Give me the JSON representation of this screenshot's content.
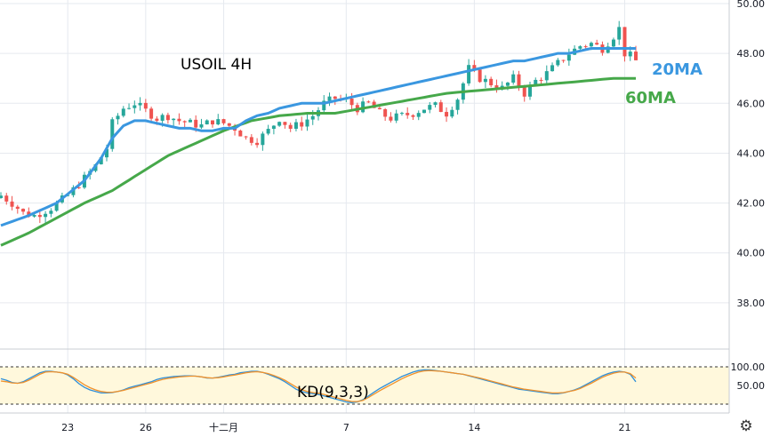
{
  "chart_data": [
    {
      "type": "candlestick",
      "symbol_label": "USOIL 4H",
      "ylim": [
        36.5,
        50.0
      ],
      "y_ticks": [
        "38.00",
        "40.00",
        "42.00",
        "44.00",
        "46.00",
        "48.00",
        "50.00"
      ],
      "x_ticks": [
        "23",
        "26",
        "十二月",
        "7",
        "14",
        "21"
      ],
      "bars_count": 115,
      "close_points": [
        [
          0,
          42.3
        ],
        [
          2,
          42.0
        ],
        [
          4,
          41.6
        ],
        [
          6,
          41.5
        ],
        [
          9,
          41.8
        ],
        [
          12,
          42.3
        ],
        [
          15,
          43.0
        ],
        [
          17,
          43.5
        ],
        [
          19,
          44.2
        ],
        [
          20,
          45.2
        ],
        [
          22,
          45.8
        ],
        [
          24,
          46.0
        ],
        [
          26,
          45.7
        ],
        [
          28,
          45.4
        ],
        [
          30,
          45.5
        ],
        [
          32,
          45.3
        ],
        [
          34,
          45.2
        ],
        [
          36,
          45.1
        ],
        [
          38,
          45.3
        ],
        [
          40,
          45.2
        ],
        [
          42,
          45.0
        ],
        [
          44,
          44.6
        ],
        [
          46,
          44.5
        ],
        [
          48,
          44.9
        ],
        [
          50,
          45.4
        ],
        [
          52,
          45.0
        ],
        [
          54,
          45.2
        ],
        [
          56,
          45.5
        ],
        [
          58,
          46.0
        ],
        [
          60,
          46.2
        ],
        [
          62,
          46.1
        ],
        [
          64,
          45.8
        ],
        [
          66,
          46.0
        ],
        [
          68,
          45.6
        ],
        [
          70,
          45.4
        ],
        [
          72,
          45.5
        ],
        [
          74,
          45.6
        ],
        [
          76,
          45.8
        ],
        [
          78,
          45.9
        ],
        [
          80,
          45.6
        ],
        [
          82,
          46.2
        ],
        [
          84,
          47.4
        ],
        [
          86,
          47.0
        ],
        [
          88,
          46.8
        ],
        [
          90,
          46.6
        ],
        [
          92,
          47.0
        ],
        [
          94,
          46.4
        ],
        [
          96,
          46.9
        ],
        [
          98,
          47.2
        ],
        [
          100,
          47.6
        ],
        [
          102,
          48.0
        ],
        [
          104,
          48.3
        ],
        [
          106,
          48.4
        ],
        [
          108,
          48.2
        ],
        [
          110,
          48.7
        ],
        [
          111,
          49.0
        ],
        [
          112,
          48.0
        ],
        [
          113,
          47.9
        ],
        [
          114,
          47.7
        ]
      ],
      "series": [
        {
          "name": "20MA",
          "color": "#3a97e0",
          "values": [
            [
              0,
              41.1
            ],
            [
              5,
              41.5
            ],
            [
              10,
              42.0
            ],
            [
              15,
              42.9
            ],
            [
              18,
              43.8
            ],
            [
              20,
              44.6
            ],
            [
              22,
              45.1
            ],
            [
              24,
              45.3
            ],
            [
              26,
              45.3
            ],
            [
              28,
              45.2
            ],
            [
              30,
              45.1
            ],
            [
              32,
              45.0
            ],
            [
              34,
              45.0
            ],
            [
              36,
              44.9
            ],
            [
              38,
              44.9
            ],
            [
              40,
              45.0
            ],
            [
              42,
              45.0
            ],
            [
              44,
              45.3
            ],
            [
              46,
              45.5
            ],
            [
              48,
              45.6
            ],
            [
              50,
              45.8
            ],
            [
              52,
              45.9
            ],
            [
              54,
              46.0
            ],
            [
              56,
              46.0
            ],
            [
              58,
              46.0
            ],
            [
              60,
              46.1
            ],
            [
              62,
              46.2
            ],
            [
              64,
              46.3
            ],
            [
              66,
              46.4
            ],
            [
              68,
              46.5
            ],
            [
              70,
              46.6
            ],
            [
              72,
              46.7
            ],
            [
              74,
              46.8
            ],
            [
              76,
              46.9
            ],
            [
              78,
              47.0
            ],
            [
              80,
              47.1
            ],
            [
              82,
              47.2
            ],
            [
              84,
              47.3
            ],
            [
              86,
              47.4
            ],
            [
              88,
              47.5
            ],
            [
              90,
              47.6
            ],
            [
              92,
              47.7
            ],
            [
              94,
              47.7
            ],
            [
              96,
              47.8
            ],
            [
              98,
              47.9
            ],
            [
              100,
              48.0
            ],
            [
              102,
              48.0
            ],
            [
              104,
              48.1
            ],
            [
              106,
              48.2
            ],
            [
              108,
              48.2
            ],
            [
              110,
              48.2
            ],
            [
              112,
              48.2
            ],
            [
              114,
              48.2
            ]
          ]
        },
        {
          "name": "60MA",
          "color": "#46a84a",
          "values": [
            [
              0,
              40.3
            ],
            [
              5,
              40.8
            ],
            [
              10,
              41.4
            ],
            [
              15,
              42.0
            ],
            [
              20,
              42.5
            ],
            [
              25,
              43.2
            ],
            [
              30,
              43.9
            ],
            [
              35,
              44.4
            ],
            [
              40,
              44.9
            ],
            [
              45,
              45.3
            ],
            [
              50,
              45.5
            ],
            [
              55,
              45.6
            ],
            [
              60,
              45.6
            ],
            [
              65,
              45.8
            ],
            [
              70,
              46.0
            ],
            [
              75,
              46.2
            ],
            [
              80,
              46.4
            ],
            [
              85,
              46.5
            ],
            [
              90,
              46.6
            ],
            [
              95,
              46.7
            ],
            [
              100,
              46.8
            ],
            [
              105,
              46.9
            ],
            [
              110,
              47.0
            ],
            [
              114,
              47.0
            ]
          ]
        }
      ]
    },
    {
      "type": "line",
      "label": "KD(9,3,3)",
      "ylim": [
        0,
        100
      ],
      "y_ticks": [
        "50.00",
        "100.00"
      ],
      "bands": [
        80,
        20
      ],
      "series": [
        {
          "name": "K",
          "color": "#2f8fd8",
          "values": [
            68,
            64,
            58,
            56,
            60,
            68,
            76,
            84,
            88,
            88,
            86,
            84,
            78,
            68,
            55,
            45,
            38,
            34,
            30,
            30,
            31,
            34,
            38,
            44,
            48,
            52,
            56,
            60,
            66,
            70,
            72,
            74,
            75,
            76,
            76,
            75,
            73,
            70,
            70,
            72,
            75,
            78,
            80,
            84,
            86,
            88,
            88,
            85,
            80,
            74,
            68,
            60,
            50,
            40,
            34,
            30,
            28,
            26,
            22,
            18,
            14,
            10,
            6,
            4,
            6,
            12,
            22,
            32,
            42,
            50,
            58,
            66,
            74,
            80,
            86,
            90,
            92,
            92,
            90,
            88,
            86,
            84,
            82,
            80,
            76,
            72,
            68,
            64,
            60,
            56,
            52,
            48,
            44,
            40,
            38,
            36,
            34,
            32,
            30,
            28,
            28,
            30,
            34,
            38,
            44,
            52,
            60,
            68,
            76,
            82,
            86,
            88,
            86,
            80,
            60
          ]
        },
        {
          "name": "D",
          "color": "#f0922c",
          "values": [
            62,
            60,
            57,
            56,
            58,
            64,
            72,
            80,
            86,
            87,
            86,
            84,
            80,
            72,
            62,
            52,
            44,
            38,
            34,
            32,
            32,
            34,
            37,
            41,
            45,
            49,
            53,
            57,
            62,
            66,
            69,
            71,
            73,
            74,
            75,
            75,
            73,
            71,
            70,
            71,
            73,
            76,
            78,
            81,
            84,
            86,
            87,
            85,
            82,
            77,
            71,
            64,
            55,
            46,
            39,
            34,
            31,
            29,
            26,
            22,
            18,
            14,
            10,
            7,
            7,
            10,
            18,
            27,
            36,
            44,
            52,
            60,
            68,
            75,
            81,
            86,
            89,
            90,
            89,
            88,
            86,
            84,
            82,
            80,
            77,
            73,
            70,
            66,
            62,
            58,
            54,
            50,
            46,
            43,
            40,
            38,
            36,
            34,
            32,
            30,
            30,
            31,
            34,
            37,
            42,
            49,
            56,
            64,
            72,
            78,
            83,
            86,
            86,
            82,
            70
          ]
        }
      ]
    }
  ],
  "annotations": {
    "ma20_label": "20MA",
    "ma60_label": "60MA"
  },
  "colors": {
    "up": "#26a69a",
    "down": "#ef5350",
    "ma20": "#3a97e0",
    "ma60": "#46a84a",
    "kd_band": "#fff8dc",
    "grid": "#e6e9ef"
  },
  "settings_icon": "gear-icon"
}
